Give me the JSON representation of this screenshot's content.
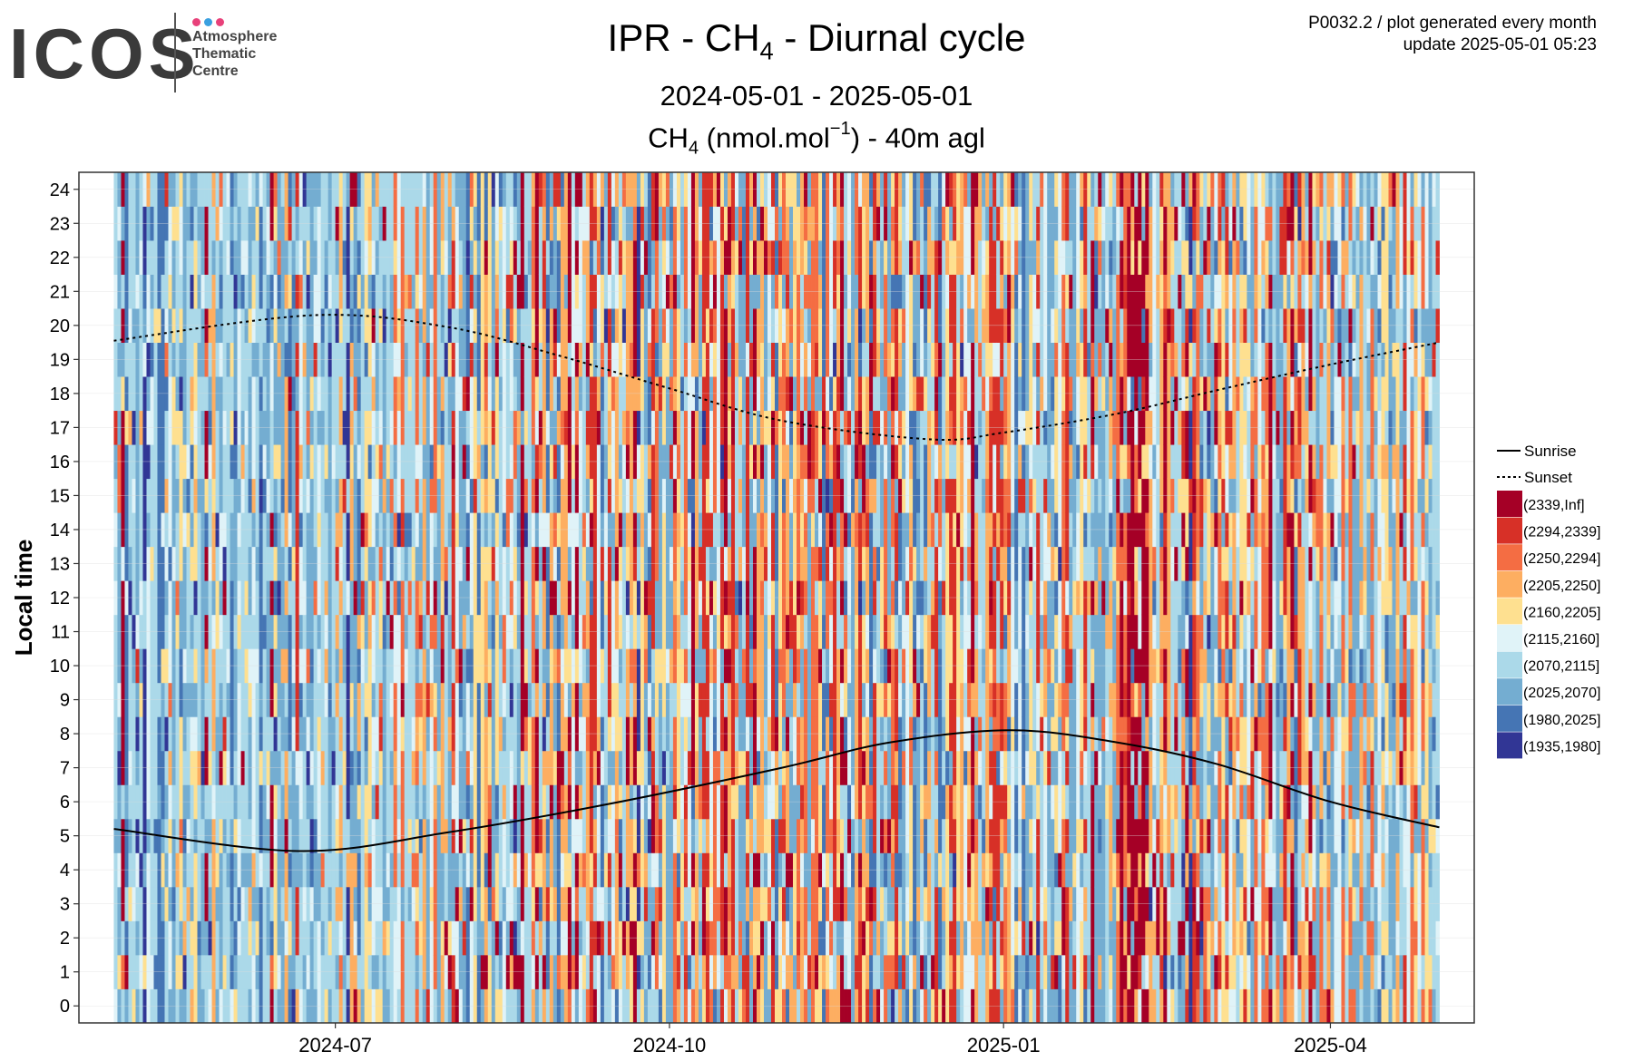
{
  "logo": {
    "word": "ICOS",
    "lines": [
      "Atmosphere",
      "Thematic",
      "Centre"
    ],
    "dot_colors": [
      "#e8417a",
      "#3aa0e0",
      "#e8417a"
    ]
  },
  "header": {
    "title_pre": "IPR - CH",
    "title_sub": "4",
    "title_post": " - Diurnal cycle",
    "subtitle": "2024-05-01 - 2025-05-01",
    "panel_pre": "CH",
    "panel_sub": "4",
    "panel_mid": " (nmol.mol",
    "panel_sup": "−1",
    "panel_post": ") - 40m agl",
    "info_line1": "P0032.2 / plot generated every month",
    "info_line2": "update  2025-05-01 05:23"
  },
  "chart_data": {
    "type": "heatmap",
    "xlabel": "",
    "ylabel": "Local time",
    "x_range": [
      "2024-05-01",
      "2025-05-01"
    ],
    "x_ticks": [
      {
        "date": "2024-07-01",
        "label": "2024-07"
      },
      {
        "date": "2024-10-01",
        "label": "2024-10"
      },
      {
        "date": "2025-01-01",
        "label": "2025-01"
      },
      {
        "date": "2025-04-01",
        "label": "2025-04"
      }
    ],
    "y_range": [
      0,
      24
    ],
    "y_ticks": [
      0,
      1,
      2,
      3,
      4,
      5,
      6,
      7,
      8,
      9,
      10,
      11,
      12,
      13,
      14,
      15,
      16,
      17,
      18,
      19,
      20,
      21,
      22,
      23,
      24
    ],
    "grid": true,
    "legend_position": "right",
    "legend_lines": [
      {
        "name": "Sunrise",
        "style": "solid"
      },
      {
        "name": "Sunset",
        "style": "dotted"
      }
    ],
    "color_bins": [
      {
        "label": "(2339,Inf]",
        "color": "#a50026"
      },
      {
        "label": "(2294,2339]",
        "color": "#d73027"
      },
      {
        "label": "(2250,2294]",
        "color": "#f46d43"
      },
      {
        "label": "(2205,2250]",
        "color": "#fdae61"
      },
      {
        "label": "(2160,2205]",
        "color": "#fee090"
      },
      {
        "label": "(2115,2160]",
        "color": "#e0f3f8"
      },
      {
        "label": "(2070,2115]",
        "color": "#abd9e9"
      },
      {
        "label": "(2025,2070]",
        "color": "#74add1"
      },
      {
        "label": "(1980,2025]",
        "color": "#4575b4"
      },
      {
        "label": "(1935,1980]",
        "color": "#313695"
      }
    ],
    "sunrise": [
      {
        "date": "2024-05-01",
        "hour": 5.2
      },
      {
        "date": "2024-06-21",
        "hour": 4.55
      },
      {
        "date": "2024-08-01",
        "hour": 5.1
      },
      {
        "date": "2024-09-15",
        "hour": 5.95
      },
      {
        "date": "2024-11-01",
        "hour": 7.0
      },
      {
        "date": "2024-12-01",
        "hour": 7.75
      },
      {
        "date": "2025-01-03",
        "hour": 8.1
      },
      {
        "date": "2025-02-01",
        "hour": 7.75
      },
      {
        "date": "2025-03-01",
        "hour": 7.1
      },
      {
        "date": "2025-04-01",
        "hour": 6.0
      },
      {
        "date": "2025-05-01",
        "hour": 5.25
      }
    ],
    "sunset": [
      {
        "date": "2024-05-01",
        "hour": 19.55
      },
      {
        "date": "2024-06-25",
        "hour": 20.3
      },
      {
        "date": "2024-08-01",
        "hour": 19.95
      },
      {
        "date": "2024-09-01",
        "hour": 19.1
      },
      {
        "date": "2024-10-01",
        "hour": 18.15
      },
      {
        "date": "2024-11-01",
        "hour": 17.2
      },
      {
        "date": "2024-12-12",
        "hour": 16.65
      },
      {
        "date": "2025-01-01",
        "hour": 16.85
      },
      {
        "date": "2025-02-01",
        "hour": 17.4
      },
      {
        "date": "2025-03-01",
        "hour": 18.1
      },
      {
        "date": "2025-04-01",
        "hour": 18.85
      },
      {
        "date": "2025-05-01",
        "hour": 19.5
      }
    ],
    "cell_pattern": {
      "period": "2024-05-01 to 2025-05-01",
      "resolution": "1 day x 1 hour",
      "seed": 20240501,
      "bin_weights_by_month": {
        "2024-05": [
          0.01,
          0.01,
          0.02,
          0.05,
          0.09,
          0.15,
          0.27,
          0.28,
          0.08,
          0.04
        ],
        "2024-06": [
          0.01,
          0.01,
          0.02,
          0.05,
          0.08,
          0.15,
          0.28,
          0.3,
          0.07,
          0.03
        ],
        "2024-07": [
          0.03,
          0.04,
          0.05,
          0.08,
          0.11,
          0.14,
          0.23,
          0.23,
          0.07,
          0.02
        ],
        "2024-08": [
          0.1,
          0.07,
          0.09,
          0.1,
          0.12,
          0.12,
          0.17,
          0.15,
          0.06,
          0.02
        ],
        "2024-09": [
          0.06,
          0.06,
          0.08,
          0.1,
          0.13,
          0.12,
          0.19,
          0.19,
          0.06,
          0.01
        ],
        "2024-10": [
          0.07,
          0.07,
          0.1,
          0.13,
          0.15,
          0.11,
          0.16,
          0.15,
          0.05,
          0.01
        ],
        "2024-11": [
          0.12,
          0.1,
          0.11,
          0.13,
          0.13,
          0.09,
          0.13,
          0.13,
          0.05,
          0.01
        ],
        "2024-12": [
          0.07,
          0.07,
          0.09,
          0.12,
          0.13,
          0.11,
          0.17,
          0.17,
          0.06,
          0.01
        ],
        "2025-01": [
          0.05,
          0.05,
          0.07,
          0.1,
          0.13,
          0.13,
          0.2,
          0.2,
          0.06,
          0.01
        ],
        "2025-02": [
          0.14,
          0.11,
          0.12,
          0.14,
          0.14,
          0.08,
          0.11,
          0.11,
          0.04,
          0.01
        ],
        "2025-03": [
          0.05,
          0.06,
          0.09,
          0.13,
          0.16,
          0.14,
          0.17,
          0.15,
          0.04,
          0.01
        ],
        "2025-04": [
          0.02,
          0.02,
          0.04,
          0.08,
          0.13,
          0.17,
          0.24,
          0.23,
          0.06,
          0.01
        ]
      }
    }
  }
}
